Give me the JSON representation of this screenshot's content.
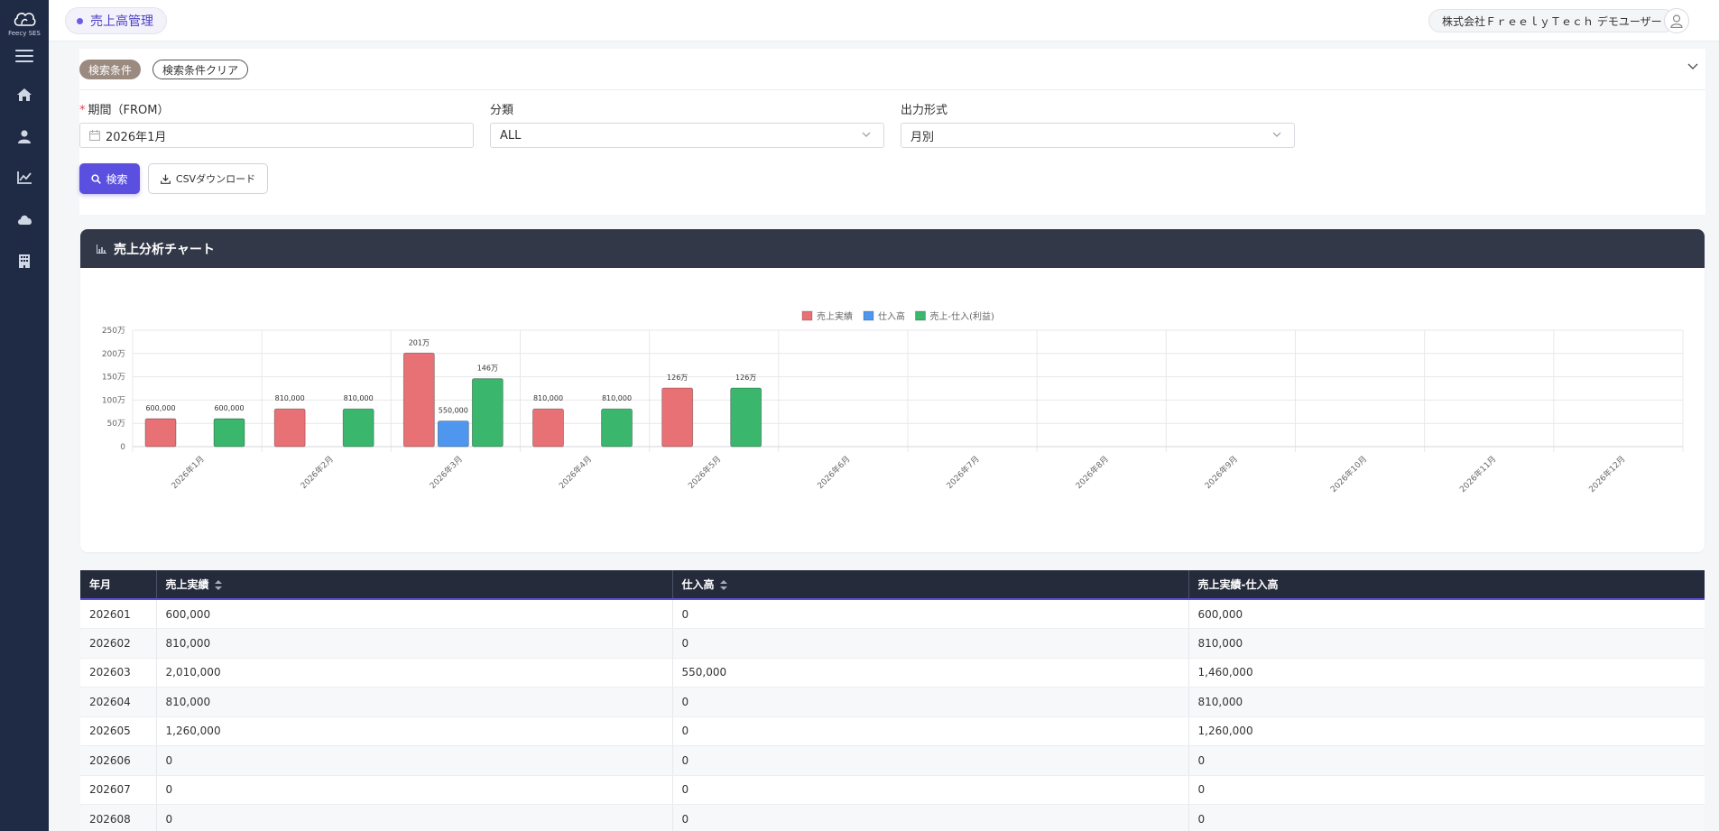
{
  "app": {
    "logo_text": "Feecy SES"
  },
  "header": {
    "title": "売上高管理",
    "company_user": "株式会社ＦｒｅｅｌｙＴｅｃｈ デモユーザー"
  },
  "search": {
    "tag_label": "検索条件",
    "clear_label": "検索条件クリア",
    "period_label": "期間（FROM）",
    "period_value": "2026年1月",
    "category_label": "分類",
    "category_value": "ALL",
    "format_label": "出力形式",
    "format_value": "月別",
    "search_button": "検索",
    "csv_button": "CSVダウンロード"
  },
  "chart_card": {
    "title": "売上分析チャート"
  },
  "chart_data": {
    "type": "bar",
    "categories": [
      "2026年1月",
      "2026年2月",
      "2026年3月",
      "2026年4月",
      "2026年5月",
      "2026年6月",
      "2026年7月",
      "2026年8月",
      "2026年9月",
      "2026年10月",
      "2026年11月",
      "2026年12月"
    ],
    "series": [
      {
        "name": "売上実績",
        "color": "#e87175",
        "values": [
          600000,
          810000,
          2010000,
          810000,
          1260000,
          0,
          0,
          0,
          0,
          0,
          0,
          0
        ],
        "labels": [
          "600,000",
          "810,000",
          "201万",
          "810,000",
          "126万",
          "",
          "",
          "",
          "",
          "",
          "",
          ""
        ]
      },
      {
        "name": "仕入高",
        "color": "#4f96ef",
        "values": [
          0,
          0,
          550000,
          0,
          0,
          0,
          0,
          0,
          0,
          0,
          0,
          0
        ],
        "labels": [
          "",
          "",
          "550,000",
          "",
          "",
          "",
          "",
          "",
          "",
          "",
          "",
          ""
        ]
      },
      {
        "name": "売上-仕入(利益)",
        "color": "#3ab66d",
        "values": [
          600000,
          810000,
          1460000,
          810000,
          1260000,
          0,
          0,
          0,
          0,
          0,
          0,
          0
        ],
        "labels": [
          "600,000",
          "810,000",
          "146万",
          "810,000",
          "126万",
          "",
          "",
          "",
          "",
          "",
          "",
          ""
        ]
      }
    ],
    "yticks": [
      "0",
      "50万",
      "100万",
      "150万",
      "200万",
      "250万"
    ],
    "ylim": [
      0,
      2500000
    ],
    "legend_position": "top-center",
    "grid": true
  },
  "table": {
    "headers": [
      "年月",
      "売上実績",
      "仕入高",
      "売上実績-仕入高"
    ],
    "rows": [
      [
        "202601",
        "600,000",
        "0",
        "600,000"
      ],
      [
        "202602",
        "810,000",
        "0",
        "810,000"
      ],
      [
        "202603",
        "2,010,000",
        "550,000",
        "1,460,000"
      ],
      [
        "202604",
        "810,000",
        "0",
        "810,000"
      ],
      [
        "202605",
        "1,260,000",
        "0",
        "1,260,000"
      ],
      [
        "202606",
        "0",
        "0",
        "0"
      ],
      [
        "202607",
        "0",
        "0",
        "0"
      ],
      [
        "202608",
        "0",
        "0",
        "0"
      ]
    ]
  }
}
